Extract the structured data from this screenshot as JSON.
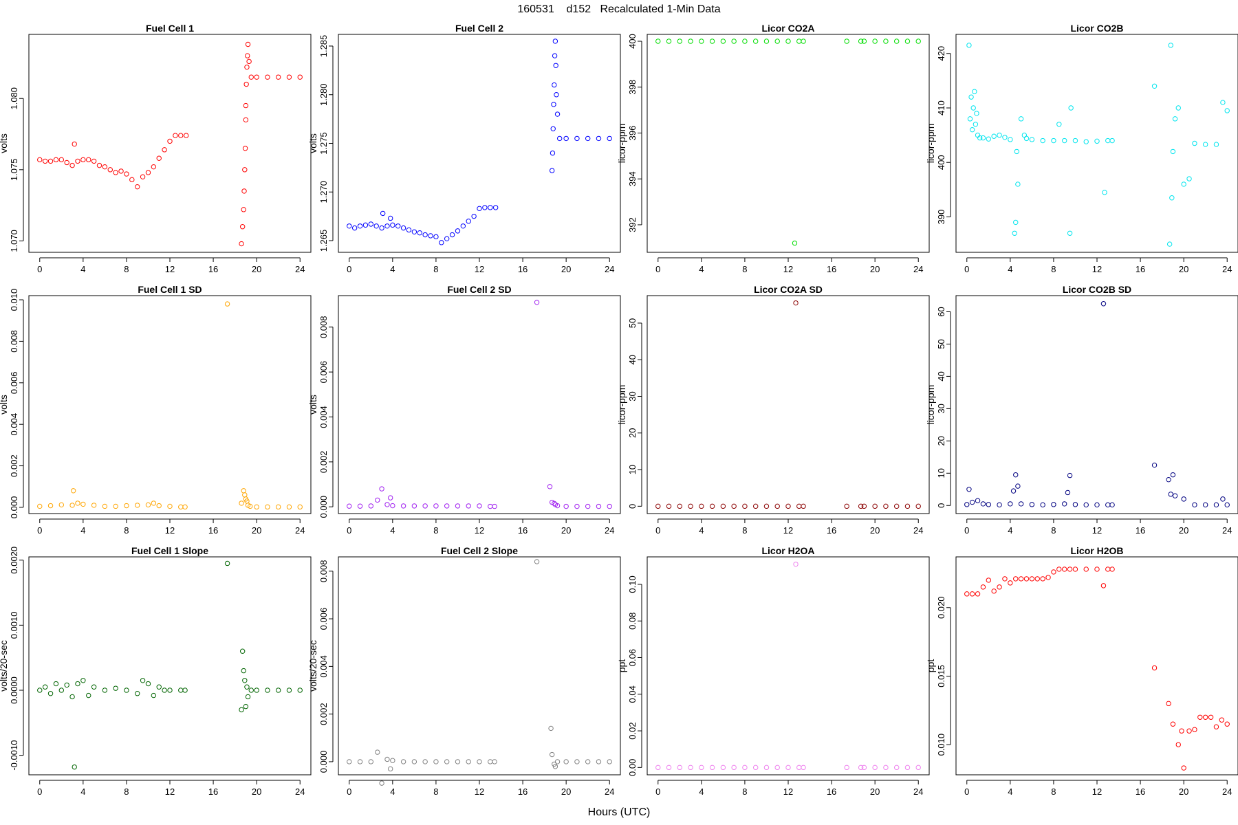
{
  "figure": {
    "title": "160531    d152   Recalculated 1-Min Data",
    "xlabel": "Hours (UTC)"
  },
  "chart_data": [
    {
      "type": "scatter",
      "title": "Fuel Cell 1",
      "xlabel": "",
      "ylabel": "volts",
      "xlim": [
        -1,
        25
      ],
      "ylim": [
        1.0692,
        1.0845
      ],
      "xticks": [
        0,
        4,
        8,
        12,
        16,
        20,
        24
      ],
      "yticks": [
        1.07,
        1.075,
        1.08
      ],
      "ytick_labels": [
        "1.070",
        "1.075",
        "1.080"
      ],
      "color": "#ff0000",
      "x": [
        0,
        0.5,
        1,
        1.5,
        2,
        2.5,
        3,
        3.2,
        3.5,
        4,
        4.5,
        5,
        5.5,
        6,
        6.5,
        7,
        7.5,
        8,
        8.5,
        9,
        9.5,
        10,
        10.5,
        11,
        11.5,
        12,
        12.5,
        13,
        13.5,
        18.6,
        18.7,
        18.8,
        18.85,
        18.9,
        18.95,
        19,
        19,
        19.05,
        19.1,
        19.15,
        19.2,
        19.3,
        19.5,
        20,
        21,
        22,
        23,
        24
      ],
      "y": [
        1.0757,
        1.0756,
        1.0756,
        1.0757,
        1.0757,
        1.0755,
        1.0753,
        1.0768,
        1.0756,
        1.0757,
        1.0757,
        1.0756,
        1.0753,
        1.0752,
        1.075,
        1.0748,
        1.0749,
        1.0747,
        1.0743,
        1.0738,
        1.0745,
        1.0748,
        1.0752,
        1.0758,
        1.0764,
        1.077,
        1.0774,
        1.0774,
        1.0774,
        1.0698,
        1.071,
        1.0722,
        1.0735,
        1.075,
        1.0765,
        1.0785,
        1.0795,
        1.081,
        1.0822,
        1.083,
        1.0838,
        1.0826,
        1.0815,
        1.0815,
        1.0815,
        1.0815,
        1.0815,
        1.0815
      ]
    },
    {
      "type": "scatter",
      "title": "Fuel Cell 2",
      "xlabel": "",
      "ylabel": "volts",
      "xlim": [
        -1,
        25
      ],
      "ylim": [
        1.2638,
        1.2862
      ],
      "xticks": [
        0,
        4,
        8,
        12,
        16,
        20,
        24
      ],
      "yticks": [
        1.265,
        1.27,
        1.275,
        1.28,
        1.285
      ],
      "ytick_labels": [
        "1.265",
        "1.270",
        "1.275",
        "1.280",
        "1.285"
      ],
      "color": "#0000ff",
      "x": [
        0,
        0.5,
        1,
        1.5,
        2,
        2.5,
        3,
        3.1,
        3.5,
        3.8,
        4,
        4.5,
        5,
        5.5,
        6,
        6.5,
        7,
        7.5,
        8,
        8.5,
        9,
        9.5,
        10,
        10.5,
        11,
        11.5,
        12,
        12.5,
        13,
        13.5,
        18.7,
        18.75,
        18.8,
        18.85,
        18.9,
        18.95,
        19,
        19.05,
        19.1,
        19.2,
        19.4,
        20,
        21,
        22,
        23,
        24
      ],
      "y": [
        1.2665,
        1.2663,
        1.2665,
        1.2666,
        1.2667,
        1.2665,
        1.2663,
        1.2678,
        1.2665,
        1.2673,
        1.2666,
        1.2665,
        1.2663,
        1.2661,
        1.2659,
        1.2658,
        1.2656,
        1.2655,
        1.2654,
        1.2648,
        1.2652,
        1.2656,
        1.266,
        1.2665,
        1.267,
        1.2675,
        1.2683,
        1.2684,
        1.2684,
        1.2684,
        1.2722,
        1.274,
        1.2765,
        1.279,
        1.281,
        1.284,
        1.2855,
        1.283,
        1.28,
        1.278,
        1.2755,
        1.2755,
        1.2755,
        1.2755,
        1.2755,
        1.2755
      ]
    },
    {
      "type": "scatter",
      "title": "Licor CO2A",
      "xlabel": "",
      "ylabel": "licor-ppm",
      "xlim": [
        -1,
        25
      ],
      "ylim": [
        390.8,
        400.3
      ],
      "xticks": [
        0,
        4,
        8,
        12,
        16,
        20,
        24
      ],
      "yticks": [
        392,
        394,
        396,
        398,
        400
      ],
      "ytick_labels": [
        "392",
        "394",
        "396",
        "398",
        "400"
      ],
      "color": "#00dd00",
      "x": [
        0,
        1,
        2,
        3,
        4,
        5,
        6,
        7,
        8,
        9,
        10,
        11,
        12,
        12.6,
        13,
        13.4,
        17.4,
        18.7,
        19,
        20,
        21,
        22,
        23,
        24
      ],
      "y": [
        400,
        400,
        400,
        400,
        400,
        400,
        400,
        400,
        400,
        400,
        400,
        400,
        400,
        391.2,
        400,
        400,
        400,
        400,
        400,
        400,
        400,
        400,
        400,
        400
      ]
    },
    {
      "type": "scatter",
      "title": "Licor CO2B",
      "xlabel": "",
      "ylabel": "licor-ppm",
      "xlim": [
        -1,
        25
      ],
      "ylim": [
        383.5,
        423.5
      ],
      "xticks": [
        0,
        4,
        8,
        12,
        16,
        20,
        24
      ],
      "yticks": [
        390,
        400,
        410,
        420
      ],
      "ytick_labels": [
        "390",
        "400",
        "410",
        "420"
      ],
      "color": "#00e5ee",
      "x": [
        0.2,
        0.3,
        0.4,
        0.5,
        0.6,
        0.7,
        0.8,
        0.9,
        1,
        1.2,
        1.5,
        2,
        2.5,
        3,
        3.5,
        4,
        4.5,
        4.6,
        4.4,
        4.7,
        5,
        5.3,
        5.5,
        6,
        7,
        8,
        8.5,
        9,
        9.5,
        9.6,
        10,
        11,
        12,
        12.7,
        13,
        13.4,
        17.3,
        18.7,
        18.8,
        18.9,
        19,
        19.2,
        19.5,
        20,
        20.5,
        21,
        22,
        23,
        23.6,
        24
      ],
      "y": [
        421.5,
        408,
        412,
        406,
        410,
        413,
        407,
        409,
        405,
        404.5,
        404.5,
        404.3,
        404.8,
        405,
        404.6,
        404.2,
        389,
        402,
        387,
        396,
        408,
        405,
        404.4,
        404.2,
        404,
        404,
        407,
        404,
        387,
        410,
        404,
        403.8,
        403.9,
        394.5,
        404,
        404,
        414,
        385,
        421.5,
        393.5,
        402,
        408,
        410,
        396,
        397,
        403.5,
        403.3,
        403.3,
        411,
        409.5
      ]
    },
    {
      "type": "scatter",
      "title": "Fuel Cell 1 SD",
      "xlabel": "",
      "ylabel": "volts",
      "xlim": [
        -1,
        25
      ],
      "ylim": [
        -0.0003,
        0.0102
      ],
      "xticks": [
        0,
        4,
        8,
        12,
        16,
        20,
        24
      ],
      "yticks": [
        0.0,
        0.002,
        0.004,
        0.006,
        0.008,
        0.01
      ],
      "ytick_labels": [
        "0.000",
        "0.002",
        "0.004",
        "0.006",
        "0.008",
        "0.010"
      ],
      "color": "#ffa500",
      "x": [
        0,
        1,
        2,
        3,
        3.1,
        3.5,
        4,
        5,
        6,
        7,
        8,
        9,
        10,
        10.5,
        11,
        12,
        13,
        13.4,
        17.3,
        18.6,
        18.8,
        18.9,
        19,
        19.1,
        19.2,
        19.4,
        20,
        21,
        22,
        23,
        24
      ],
      "y": [
        5e-05,
        8e-05,
        0.00012,
        0.0001,
        0.0008,
        0.0002,
        0.00015,
        0.0001,
        5e-05,
        5e-05,
        8e-05,
        0.0001,
        0.00012,
        0.0002,
        8e-05,
        5e-05,
        2e-05,
        2e-05,
        0.0098,
        0.0002,
        0.0008,
        0.0006,
        0.0004,
        0.0003,
        0.0001,
        5e-05,
        2e-05,
        2e-05,
        2e-05,
        2e-05,
        2e-05
      ]
    },
    {
      "type": "scatter",
      "title": "Fuel Cell 2 SD",
      "xlabel": "",
      "ylabel": "volts",
      "xlim": [
        -1,
        25
      ],
      "ylim": [
        -0.0003,
        0.0094
      ],
      "xticks": [
        0,
        4,
        8,
        12,
        16,
        20,
        24
      ],
      "yticks": [
        0.0,
        0.002,
        0.004,
        0.006,
        0.008
      ],
      "ytick_labels": [
        "0.000",
        "0.002",
        "0.004",
        "0.006",
        "0.008"
      ],
      "color": "#a020f0",
      "x": [
        0,
        1,
        2,
        2.6,
        3,
        3.5,
        3.8,
        4,
        5,
        6,
        7,
        8,
        9,
        10,
        11,
        12,
        13,
        13.4,
        17.3,
        18.5,
        18.7,
        18.9,
        19,
        19.2,
        20,
        21,
        22,
        23,
        24
      ],
      "y": [
        3e-05,
        3e-05,
        4e-05,
        0.0003,
        0.0008,
        0.0001,
        0.0004,
        5e-05,
        4e-05,
        4e-05,
        4e-05,
        4e-05,
        4e-05,
        4e-05,
        4e-05,
        4e-05,
        2e-05,
        2e-05,
        0.0091,
        0.0009,
        0.0002,
        0.00015,
        0.0001,
        5e-05,
        2e-05,
        2e-05,
        2e-05,
        2e-05,
        2e-05
      ]
    },
    {
      "type": "scatter",
      "title": "Licor CO2A SD",
      "xlabel": "",
      "ylabel": "licor-ppm",
      "xlim": [
        -1,
        25
      ],
      "ylim": [
        -2,
        57.5
      ],
      "xticks": [
        0,
        4,
        8,
        12,
        16,
        20,
        24
      ],
      "yticks": [
        0,
        10,
        20,
        30,
        40,
        50
      ],
      "ytick_labels": [
        "0",
        "10",
        "20",
        "30",
        "40",
        "50"
      ],
      "color": "#8b0000",
      "x": [
        0,
        1,
        2,
        3,
        4,
        5,
        6,
        7,
        8,
        9,
        10,
        11,
        12,
        12.7,
        13,
        13.4,
        17.4,
        18.7,
        19,
        20,
        21,
        22,
        23,
        24
      ],
      "y": [
        0,
        0,
        0,
        0,
        0,
        0,
        0,
        0,
        0,
        0,
        0,
        0,
        0,
        55.5,
        0,
        0,
        0,
        0,
        0,
        0,
        0,
        0,
        0,
        0
      ]
    },
    {
      "type": "scatter",
      "title": "Licor CO2B SD",
      "xlabel": "",
      "ylabel": "licor-ppm",
      "xlim": [
        -1,
        25
      ],
      "ylim": [
        -2.5,
        65
      ],
      "xticks": [
        0,
        4,
        8,
        12,
        16,
        20,
        24
      ],
      "yticks": [
        0,
        10,
        20,
        30,
        40,
        50,
        60
      ],
      "ytick_labels": [
        "0",
        "10",
        "20",
        "30",
        "40",
        "50",
        "60"
      ],
      "color": "#000080",
      "x": [
        0,
        0.2,
        0.5,
        1,
        1.5,
        2,
        3,
        4,
        4.3,
        4.5,
        4.7,
        5,
        6,
        7,
        8,
        9,
        9.3,
        9.5,
        10,
        11,
        12,
        12.6,
        13,
        13.4,
        17.3,
        18.6,
        18.8,
        19,
        19.2,
        20,
        21,
        22,
        23,
        23.6,
        24
      ],
      "y": [
        0.3,
        5,
        1,
        1.5,
        0.5,
        0.3,
        0.2,
        0.5,
        4.5,
        9.5,
        6,
        0.5,
        0.3,
        0.2,
        0.3,
        0.5,
        4,
        9.3,
        0.3,
        0.2,
        0.2,
        62.5,
        0.2,
        0.2,
        12.5,
        8,
        3.5,
        9.5,
        3,
        2,
        0.2,
        0.2,
        0.2,
        2,
        0.2
      ]
    },
    {
      "type": "scatter",
      "title": "Fuel Cell 1 Slope",
      "xlabel": "",
      "ylabel": "volts/20-sec",
      "xlim": [
        -1,
        25
      ],
      "ylim": [
        -0.0013,
        0.00205
      ],
      "xticks": [
        0,
        4,
        8,
        12,
        16,
        20,
        24
      ],
      "yticks": [
        -0.001,
        0.0,
        0.001,
        0.002
      ],
      "ytick_labels": [
        "-0.0010",
        "0.0000",
        "0.0010",
        "0.0020"
      ],
      "color": "#006400",
      "x": [
        0,
        0.5,
        1,
        1.5,
        2,
        2.5,
        3,
        3.2,
        3.5,
        4,
        4.5,
        5,
        6,
        7,
        8,
        9,
        9.5,
        10,
        10.5,
        11,
        11.5,
        12,
        13,
        13.4,
        17.3,
        18.6,
        18.7,
        18.8,
        18.9,
        19,
        19.1,
        19.2,
        19.5,
        20,
        21,
        22,
        23,
        24
      ],
      "y": [
        0,
        5e-05,
        -5e-05,
        0.0001,
        0,
        8e-05,
        -0.0001,
        -0.00118,
        0.0001,
        0.00015,
        -8e-05,
        5e-05,
        0,
        3e-05,
        0,
        -5e-05,
        0.00015,
        0.0001,
        -8e-05,
        5e-05,
        0,
        0,
        0,
        0,
        0.00195,
        -0.0003,
        0.0006,
        0.0003,
        0.00015,
        -0.00025,
        5e-05,
        -0.0001,
        0,
        0,
        0,
        0,
        0,
        0
      ]
    },
    {
      "type": "scatter",
      "title": "Fuel Cell 2 Slope",
      "xlabel": "",
      "ylabel": "volts/20-sec",
      "xlim": [
        -1,
        25
      ],
      "ylim": [
        -0.00055,
        0.0086
      ],
      "xticks": [
        0,
        4,
        8,
        12,
        16,
        20,
        24
      ],
      "yticks": [
        0.0,
        0.002,
        0.004,
        0.006,
        0.008
      ],
      "ytick_labels": [
        "0.000",
        "0.002",
        "0.004",
        "0.006",
        "0.008"
      ],
      "color": "#808080",
      "x": [
        0,
        1,
        2,
        2.6,
        3,
        3.5,
        3.8,
        4,
        5,
        6,
        7,
        8,
        9,
        10,
        11,
        12,
        13,
        13.4,
        17.3,
        18.6,
        18.7,
        18.9,
        19,
        19.2,
        20,
        21,
        22,
        23,
        24
      ],
      "y": [
        0,
        0,
        0,
        0.0004,
        -0.0009,
        0.0001,
        -0.0003,
        5e-05,
        0,
        0,
        0,
        0,
        0,
        0,
        0,
        0,
        0,
        0,
        0.0084,
        0.0014,
        0.0003,
        -0.0001,
        -0.0002,
        0,
        0,
        0,
        0,
        0,
        0
      ]
    },
    {
      "type": "scatter",
      "title": "Licor H2OA",
      "xlabel": "",
      "ylabel": "ppt",
      "xlim": [
        -1,
        25
      ],
      "ylim": [
        -0.004,
        0.115
      ],
      "xticks": [
        0,
        4,
        8,
        12,
        16,
        20,
        24
      ],
      "yticks": [
        0.0,
        0.02,
        0.04,
        0.06,
        0.08,
        0.1
      ],
      "ytick_labels": [
        "0.00",
        "0.02",
        "0.04",
        "0.06",
        "0.08",
        "0.10"
      ],
      "color": "#ee82ee",
      "x": [
        0,
        1,
        2,
        3,
        4,
        5,
        6,
        7,
        8,
        9,
        10,
        11,
        12,
        12.7,
        13,
        13.4,
        17.4,
        18.7,
        19,
        20,
        21,
        22,
        23,
        24
      ],
      "y": [
        0,
        0,
        0,
        0,
        0,
        0,
        0,
        0,
        0,
        0,
        0,
        0,
        0,
        0.111,
        0,
        0,
        0,
        0,
        0,
        0,
        0,
        0,
        0,
        0
      ]
    },
    {
      "type": "scatter",
      "title": "Licor H2OB",
      "xlabel": "",
      "ylabel": "ppt",
      "xlim": [
        -1,
        25
      ],
      "ylim": [
        0.0078,
        0.0237
      ],
      "xticks": [
        0,
        4,
        8,
        12,
        16,
        20,
        24
      ],
      "yticks": [
        0.01,
        0.015,
        0.02
      ],
      "ytick_labels": [
        "0.010",
        "0.015",
        "0.020"
      ],
      "color": "#ff0000",
      "x": [
        0,
        0.5,
        1,
        1.5,
        2,
        2.5,
        3,
        3.5,
        4,
        4.5,
        5,
        5.5,
        6,
        6.5,
        7,
        7.5,
        8,
        8.5,
        9,
        9.5,
        10,
        11,
        12,
        12.6,
        13,
        13.4,
        17.3,
        18.6,
        19,
        19.5,
        19.8,
        20,
        20.5,
        21,
        21.5,
        22,
        22.5,
        23,
        23.5,
        24
      ],
      "y": [
        0.021,
        0.021,
        0.021,
        0.0215,
        0.022,
        0.0212,
        0.0215,
        0.0221,
        0.0218,
        0.0221,
        0.0221,
        0.0221,
        0.0221,
        0.0221,
        0.0221,
        0.0222,
        0.0226,
        0.0228,
        0.0228,
        0.0228,
        0.0228,
        0.0228,
        0.0228,
        0.0216,
        0.0228,
        0.0228,
        0.0156,
        0.013,
        0.0115,
        0.01,
        0.011,
        0.0083,
        0.011,
        0.0111,
        0.012,
        0.012,
        0.012,
        0.0113,
        0.0118,
        0.0115
      ]
    }
  ]
}
